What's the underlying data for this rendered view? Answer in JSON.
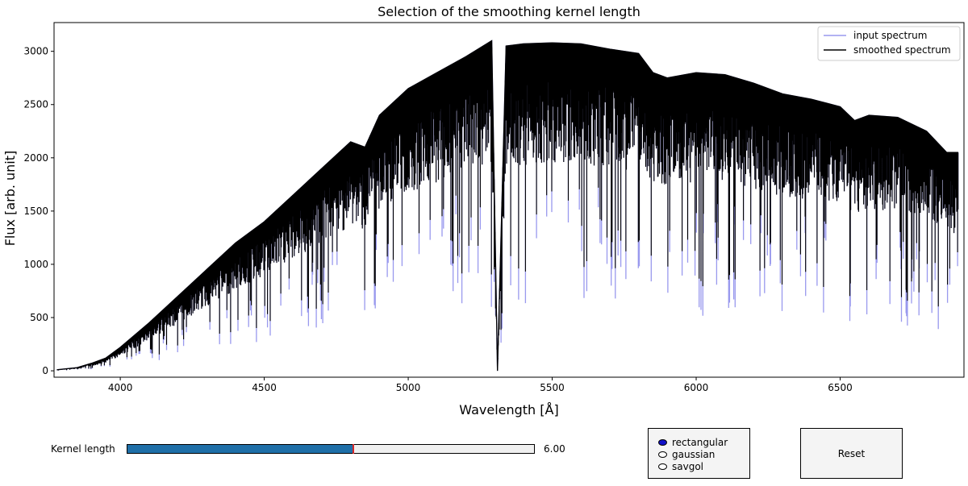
{
  "chart_data": {
    "type": "line",
    "title": "Selection of the smoothing kernel length",
    "xlabel": "Wavelength [Å]",
    "ylabel": "Flux [arb. unit]",
    "xlim": [
      3770,
      6930
    ],
    "ylim": [
      -60,
      3270
    ],
    "x_ticks": [
      4000,
      4500,
      5000,
      5500,
      6000,
      6500
    ],
    "y_ticks": [
      0,
      500,
      1000,
      1500,
      2000,
      2500,
      3000
    ],
    "legend_position": "top-right",
    "series": [
      {
        "name": "input spectrum",
        "color": "#9999ee",
        "x": [
          3780,
          3850,
          3900,
          3950,
          4000,
          4100,
          4200,
          4300,
          4400,
          4500,
          4600,
          4700,
          4800,
          4850,
          4900,
          5000,
          5100,
          5200,
          5290,
          5310,
          5340,
          5400,
          5500,
          5600,
          5700,
          5800,
          5850,
          5900,
          6000,
          6100,
          6200,
          6300,
          6400,
          6500,
          6550,
          6600,
          6700,
          6800,
          6870,
          6890,
          6910
        ],
        "y": [
          10,
          30,
          70,
          120,
          220,
          450,
          700,
          950,
          1200,
          1400,
          1650,
          1900,
          2150,
          2100,
          2400,
          2650,
          2800,
          2950,
          3100,
          0,
          3050,
          3070,
          3080,
          3070,
          3020,
          2980,
          2800,
          2750,
          2800,
          2780,
          2700,
          2600,
          2550,
          2480,
          2350,
          2400,
          2380,
          2250,
          2050,
          2050,
          2050
        ],
        "absorption_depth_frac": 0.82
      },
      {
        "name": "smoothed spectrum",
        "color": "#000000",
        "x": [
          3780,
          3850,
          3900,
          3950,
          4000,
          4100,
          4200,
          4300,
          4400,
          4500,
          4600,
          4700,
          4800,
          4850,
          4900,
          5000,
          5100,
          5200,
          5290,
          5310,
          5340,
          5400,
          5500,
          5600,
          5700,
          5800,
          5850,
          5900,
          6000,
          6100,
          6200,
          6300,
          6400,
          6500,
          6550,
          6600,
          6700,
          6800,
          6870,
          6890,
          6910
        ],
        "y": [
          10,
          30,
          70,
          120,
          220,
          450,
          700,
          950,
          1200,
          1400,
          1650,
          1900,
          2150,
          2100,
          2400,
          2650,
          2800,
          2950,
          3100,
          0,
          3050,
          3070,
          3080,
          3070,
          3020,
          2980,
          2800,
          2750,
          2800,
          2780,
          2700,
          2600,
          2550,
          2480,
          2350,
          2400,
          2380,
          2250,
          2050,
          2050,
          2050
        ],
        "absorption_depth_frac": 0.72
      }
    ]
  },
  "controls": {
    "kernel_label": "Kernel length",
    "kernel_value_text": "6.00",
    "kernel_fraction": 0.555,
    "radio_options": [
      "rectangular",
      "gaussian",
      "savgol"
    ],
    "radio_selected": "rectangular",
    "reset_label": "Reset"
  }
}
